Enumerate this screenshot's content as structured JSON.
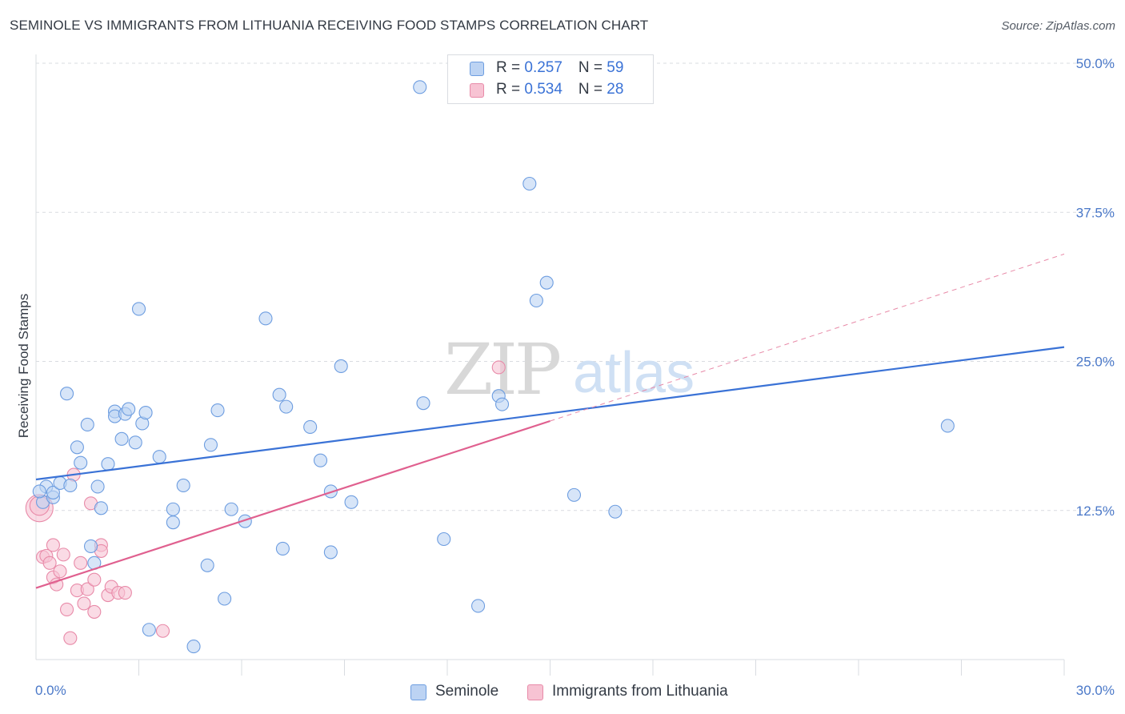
{
  "title": "SEMINOLE VS IMMIGRANTS FROM LITHUANIA RECEIVING FOOD STAMPS CORRELATION CHART",
  "source": "Source: ZipAtlas.com",
  "watermark": {
    "part1": "ZIP",
    "part2": "atlas"
  },
  "legend": {
    "rows": [
      {
        "r_label": "R = ",
        "r_value": "0.257",
        "n_label": "N = ",
        "n_value": "59"
      },
      {
        "r_label": "R = ",
        "r_value": "0.534",
        "n_label": "N = ",
        "n_value": "28"
      }
    ]
  },
  "bottom_legend": {
    "seminole": "Seminole",
    "lithuania": "Immigrants from Lithuania"
  },
  "colors": {
    "seminole_fill": "#bcd3f3",
    "seminole_stroke": "#6d9de0",
    "seminole_line": "#3a72d6",
    "lithuania_fill": "#f7c3d3",
    "lithuania_stroke": "#e88aa8",
    "lithuania_line": "#e0608f",
    "grid": "#d9dce1",
    "tick_text": "#4a78c8"
  },
  "chart_data": {
    "type": "scatter",
    "title": "SEMINOLE VS IMMIGRANTS FROM LITHUANIA RECEIVING FOOD STAMPS CORRELATION CHART",
    "xlabel": "",
    "ylabel": "Receiving Food Stamps",
    "xlim": [
      0,
      30
    ],
    "ylim": [
      0,
      50
    ],
    "x_tick_labels": [
      "0.0%",
      "30.0%"
    ],
    "y_ticks": [
      12.5,
      25.0,
      37.5,
      50.0
    ],
    "y_tick_labels": [
      "12.5%",
      "25.0%",
      "37.5%",
      "50.0%"
    ],
    "grid": true,
    "legend_position": "top-center",
    "series": [
      {
        "name": "Seminole",
        "R": 0.257,
        "N": 59,
        "trend": {
          "x": [
            0,
            30
          ],
          "y": [
            15.1,
            26.2
          ],
          "style": "solid"
        },
        "points": [
          [
            0.2,
            13.2
          ],
          [
            0.3,
            14.5
          ],
          [
            0.5,
            13.6
          ],
          [
            0.5,
            14.0
          ],
          [
            0.7,
            14.8
          ],
          [
            0.9,
            22.3
          ],
          [
            1.0,
            14.6
          ],
          [
            1.2,
            17.8
          ],
          [
            1.3,
            16.5
          ],
          [
            1.5,
            19.7
          ],
          [
            1.6,
            9.5
          ],
          [
            1.7,
            8.1
          ],
          [
            1.8,
            14.5
          ],
          [
            1.9,
            12.7
          ],
          [
            2.1,
            16.4
          ],
          [
            2.3,
            20.8
          ],
          [
            2.3,
            20.4
          ],
          [
            2.5,
            18.5
          ],
          [
            2.6,
            20.6
          ],
          [
            2.7,
            21.0
          ],
          [
            2.9,
            18.2
          ],
          [
            3.0,
            29.4
          ],
          [
            3.1,
            19.8
          ],
          [
            3.2,
            20.7
          ],
          [
            3.3,
            2.5
          ],
          [
            3.6,
            17.0
          ],
          [
            4.0,
            11.5
          ],
          [
            4.0,
            12.6
          ],
          [
            4.3,
            14.6
          ],
          [
            4.6,
            1.1
          ],
          [
            5.0,
            7.9
          ],
          [
            5.1,
            18.0
          ],
          [
            5.3,
            20.9
          ],
          [
            5.5,
            5.1
          ],
          [
            5.7,
            12.6
          ],
          [
            6.1,
            11.6
          ],
          [
            6.7,
            28.6
          ],
          [
            7.1,
            22.2
          ],
          [
            7.2,
            9.3
          ],
          [
            7.3,
            21.2
          ],
          [
            8.0,
            19.5
          ],
          [
            8.3,
            16.7
          ],
          [
            8.6,
            9.0
          ],
          [
            8.6,
            14.1
          ],
          [
            8.9,
            24.6
          ],
          [
            9.2,
            13.2
          ],
          [
            11.2,
            48.0
          ],
          [
            11.3,
            21.5
          ],
          [
            11.9,
            10.1
          ],
          [
            12.9,
            4.5
          ],
          [
            13.5,
            22.1
          ],
          [
            13.6,
            21.4
          ],
          [
            14.4,
            39.9
          ],
          [
            14.6,
            30.1
          ],
          [
            14.9,
            31.6
          ],
          [
            15.7,
            13.8
          ],
          [
            16.9,
            12.4
          ],
          [
            26.6,
            19.6
          ],
          [
            0.1,
            14.1
          ]
        ]
      },
      {
        "name": "Immigrants from Lithuania",
        "R": 0.534,
        "N": 28,
        "trend": {
          "x": [
            0,
            15
          ],
          "y": [
            6.0,
            20.0
          ],
          "style": "solid",
          "extrapolated": {
            "x": [
              15,
              30
            ],
            "y": [
              20.0,
              34.0
            ],
            "style": "dashed"
          }
        },
        "points": [
          [
            0.1,
            12.7
          ],
          [
            0.1,
            12.9
          ],
          [
            0.2,
            8.6
          ],
          [
            0.3,
            8.7
          ],
          [
            0.4,
            8.1
          ],
          [
            0.5,
            6.9
          ],
          [
            0.5,
            9.6
          ],
          [
            0.6,
            6.3
          ],
          [
            0.7,
            7.4
          ],
          [
            0.8,
            8.8
          ],
          [
            0.9,
            4.2
          ],
          [
            1.0,
            1.8
          ],
          [
            1.1,
            15.5
          ],
          [
            1.2,
            5.8
          ],
          [
            1.3,
            8.1
          ],
          [
            1.5,
            5.9
          ],
          [
            1.4,
            4.7
          ],
          [
            1.6,
            13.1
          ],
          [
            1.7,
            6.7
          ],
          [
            1.7,
            4.0
          ],
          [
            1.9,
            9.6
          ],
          [
            1.9,
            9.1
          ],
          [
            2.1,
            5.4
          ],
          [
            2.2,
            6.1
          ],
          [
            2.4,
            5.6
          ],
          [
            2.6,
            5.6
          ],
          [
            3.7,
            2.4
          ],
          [
            13.5,
            24.5
          ]
        ]
      }
    ]
  }
}
